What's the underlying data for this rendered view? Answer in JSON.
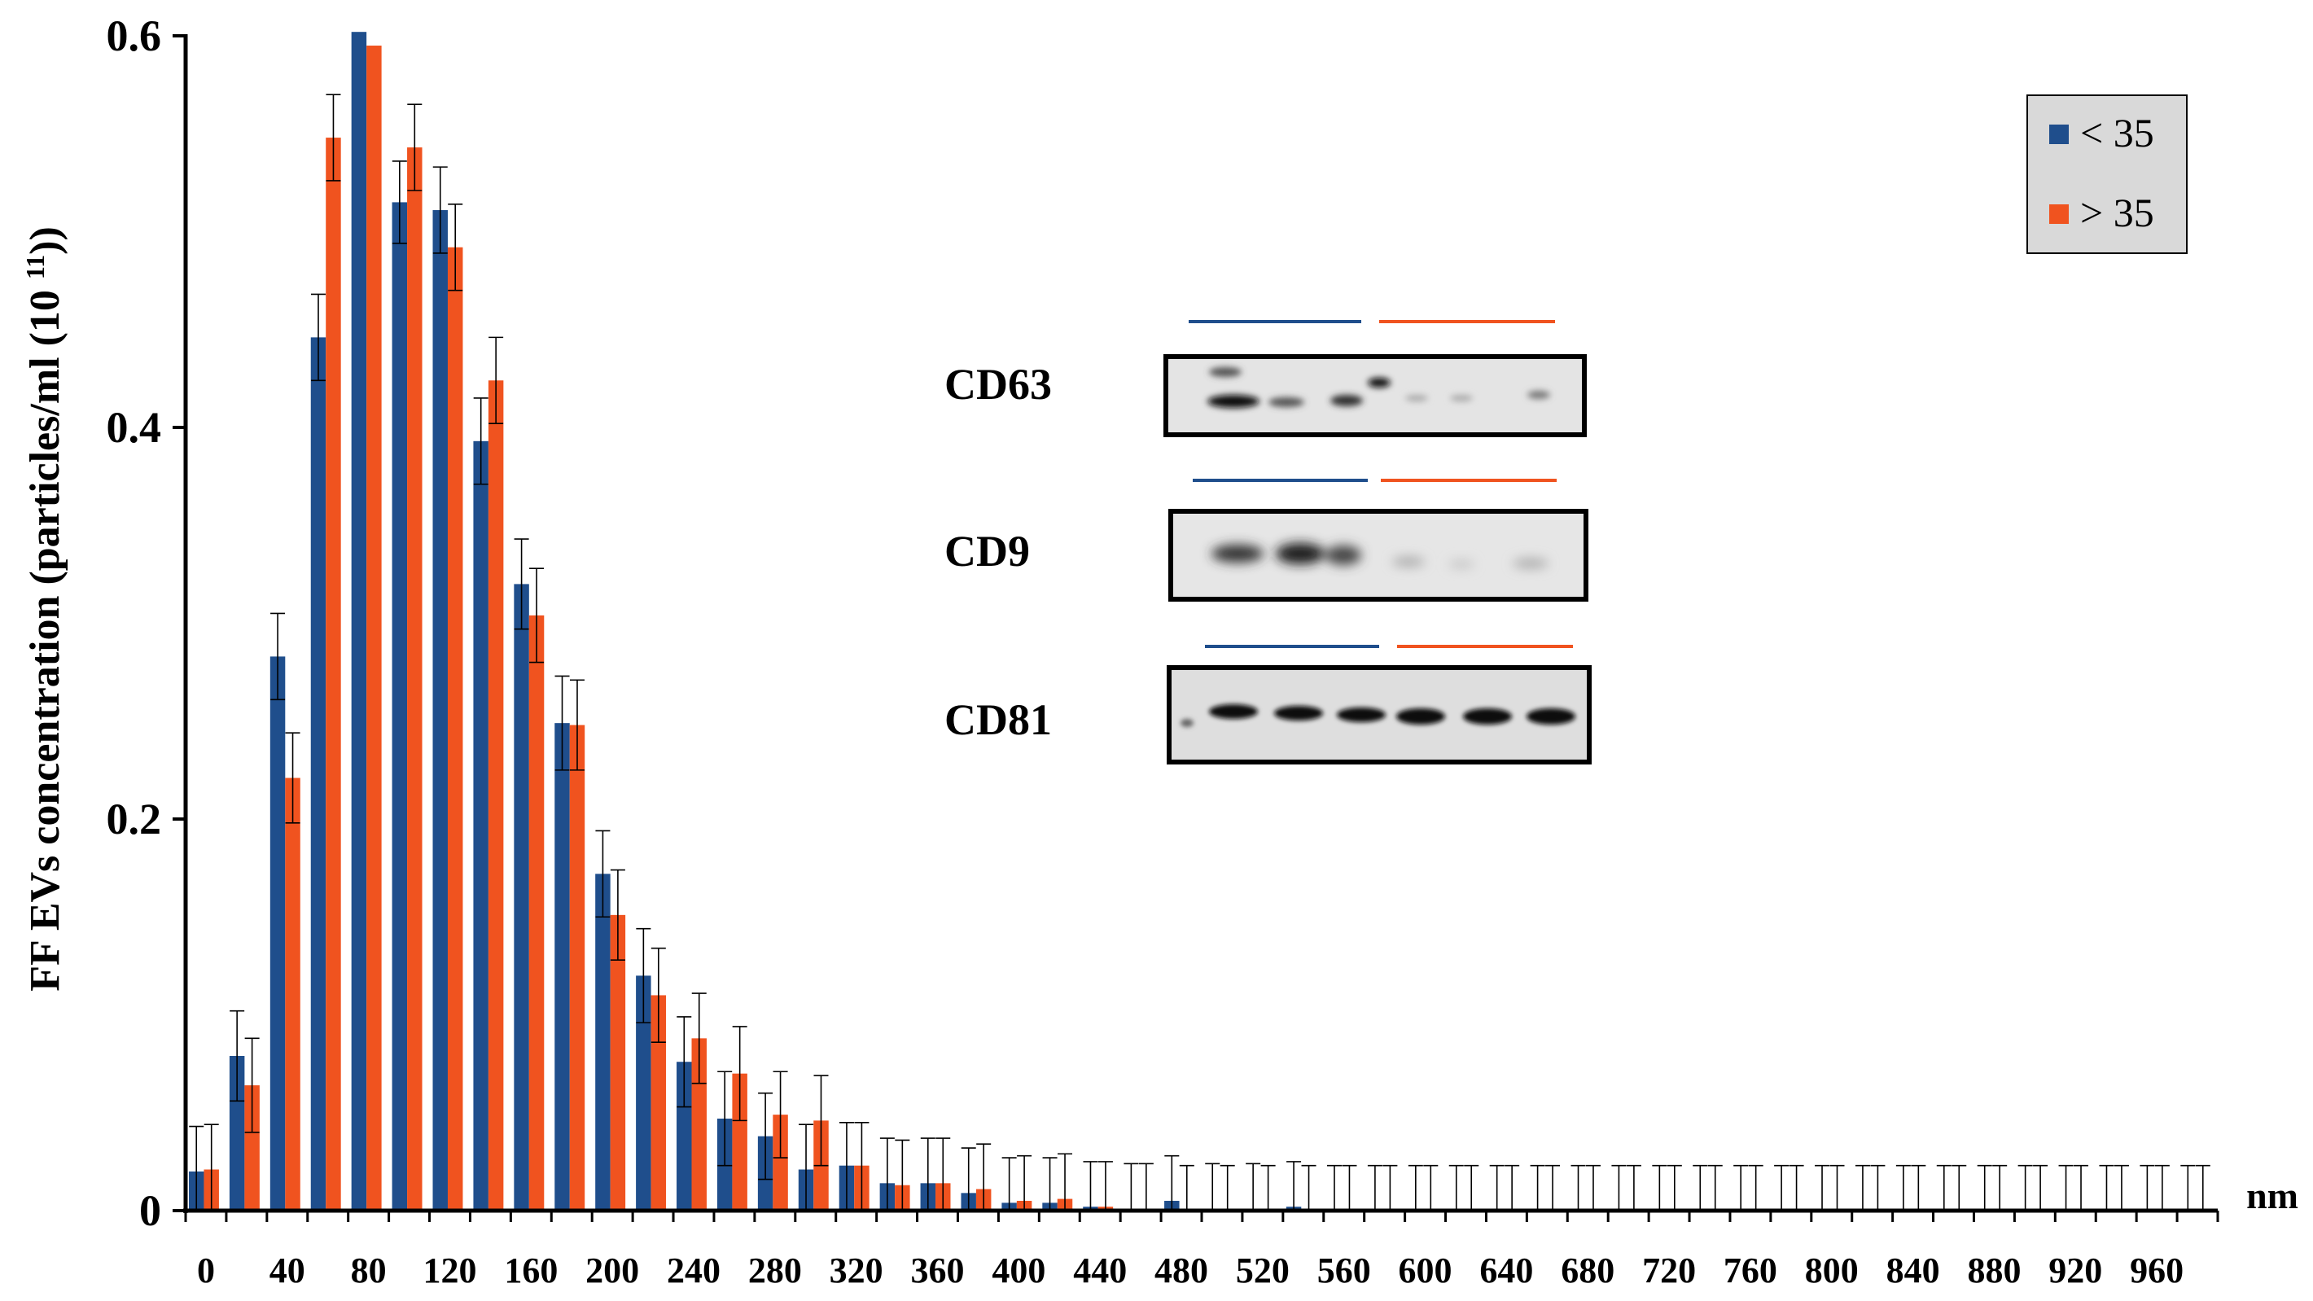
{
  "chart_data": {
    "type": "bar",
    "ylabel": "FF EVs concentration (particles/ml (10 ¹¹))",
    "ylabel_parts": {
      "main": "FF EVs concentration (particles/ml (10 ",
      "sup": "11",
      "end": "))"
    },
    "xlabel": "nm",
    "ylim": [
      0,
      0.6
    ],
    "yticks": [
      "0",
      "0.2",
      "0.4",
      "0.6"
    ],
    "bin_width": 20,
    "x_start": 0,
    "x_end": 1000,
    "xticks": [
      "0",
      "40",
      "80",
      "120",
      "160",
      "200",
      "240",
      "280",
      "320",
      "360",
      "400",
      "440",
      "480",
      "520",
      "560",
      "600",
      "640",
      "680",
      "720",
      "760",
      "800",
      "840",
      "880",
      "920",
      "960"
    ],
    "legend_position": "top-right",
    "series": [
      {
        "name": "< 35",
        "color": "#1f4e8c",
        "values": [
          0.02,
          0.079,
          0.283,
          0.446,
          0.602,
          0.515,
          0.511,
          0.393,
          0.32,
          0.249,
          0.172,
          0.12,
          0.076,
          0.047,
          0.038,
          0.021,
          0.023,
          0.014,
          0.014,
          0.009,
          0.004,
          0.004,
          0.002,
          0.001,
          0.005,
          0.001,
          0.001,
          0.002,
          0.0,
          0.0,
          0.0,
          0.0,
          0.0,
          0.0,
          0.0,
          0.0,
          0.0,
          0.0,
          0.0,
          0.0,
          0.0,
          0.0,
          0.0,
          0.0,
          0.0,
          0.0,
          0.0,
          0.0,
          0.0,
          0.0
        ],
        "errors": [
          0.023,
          0.023,
          0.022,
          0.022,
          0.0,
          0.021,
          0.022,
          0.022,
          0.023,
          0.024,
          0.022,
          0.024,
          0.023,
          0.024,
          0.022,
          0.023,
          0.022,
          0.023,
          0.023,
          0.023,
          0.023,
          0.023,
          0.023,
          0.023,
          0.023,
          0.023,
          0.023,
          0.023,
          0.023,
          0.023,
          0.023,
          0.023,
          0.023,
          0.023,
          0.023,
          0.023,
          0.023,
          0.023,
          0.023,
          0.023,
          0.023,
          0.023,
          0.023,
          0.023,
          0.023,
          0.023,
          0.023,
          0.023,
          0.023,
          0.023
        ]
      },
      {
        "name": "> 35",
        "color": "#f0531f",
        "values": [
          0.021,
          0.064,
          0.221,
          0.548,
          0.595,
          0.543,
          0.492,
          0.424,
          0.304,
          0.248,
          0.151,
          0.11,
          0.088,
          0.07,
          0.049,
          0.046,
          0.023,
          0.013,
          0.014,
          0.011,
          0.005,
          0.006,
          0.002,
          0.001,
          0.0,
          0.0,
          0.0,
          0.0,
          0.0,
          0.0,
          0.0,
          0.0,
          0.0,
          0.0,
          0.0,
          0.0,
          0.0,
          0.0,
          0.0,
          0.0,
          0.0,
          0.0,
          0.0,
          0.0,
          0.0,
          0.0,
          0.0,
          0.0,
          0.0,
          0.0
        ],
        "errors": [
          0.023,
          0.024,
          0.023,
          0.022,
          0.0,
          0.022,
          0.022,
          0.022,
          0.024,
          0.023,
          0.023,
          0.024,
          0.023,
          0.024,
          0.022,
          0.023,
          0.022,
          0.023,
          0.023,
          0.023,
          0.023,
          0.023,
          0.023,
          0.023,
          0.023,
          0.023,
          0.023,
          0.023,
          0.023,
          0.023,
          0.023,
          0.023,
          0.023,
          0.023,
          0.023,
          0.023,
          0.023,
          0.023,
          0.023,
          0.023,
          0.023,
          0.023,
          0.023,
          0.023,
          0.023,
          0.023,
          0.023,
          0.023,
          0.023,
          0.023
        ]
      }
    ]
  },
  "legend": {
    "items": [
      {
        "label": "< 35",
        "color": "#1f4e8c"
      },
      {
        "label": "> 35",
        "color": "#f0531f"
      }
    ]
  },
  "inset_blots": [
    {
      "label": "CD63"
    },
    {
      "label": "CD9"
    },
    {
      "label": "CD81"
    }
  ]
}
